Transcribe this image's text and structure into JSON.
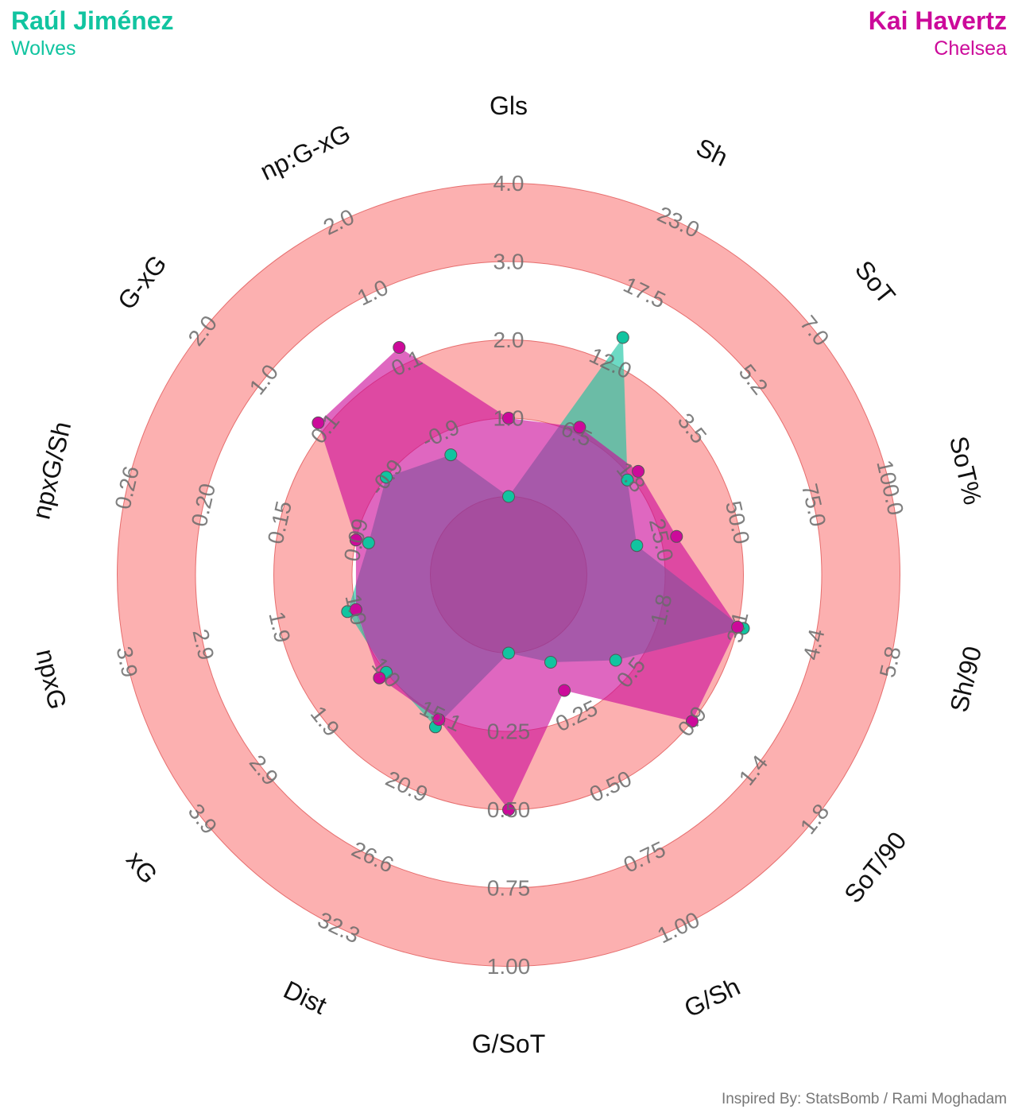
{
  "players": {
    "left": {
      "name": "Raúl Jiménez",
      "team": "Wolves",
      "color": "#11c4a0"
    },
    "right": {
      "name": "Kai Havertz",
      "team": "Chelsea",
      "color": "#cc0a9a"
    }
  },
  "credit": "Inspired By: StatsBomb / Rami Moghadam",
  "colors": {
    "ring": "#fcb0b0",
    "ring_edge": "#e05555"
  },
  "chart_data": {
    "type": "radar",
    "title": "",
    "metrics": [
      {
        "label": "Gls",
        "ticks": [
          "1.0",
          "2.0",
          "3.0",
          "4.0"
        ]
      },
      {
        "label": "Sh",
        "ticks": [
          "6.5",
          "12.0",
          "17.5",
          "23.0"
        ]
      },
      {
        "label": "SoT",
        "ticks": [
          "1.8",
          "3.5",
          "5.2",
          "7.0"
        ]
      },
      {
        "label": "SoT%",
        "ticks": [
          "25.0",
          "50.0",
          "75.0",
          "100.0"
        ]
      },
      {
        "label": "Sh/90",
        "ticks": [
          "1.8",
          "3.1",
          "4.4",
          "5.8"
        ]
      },
      {
        "label": "SoT/90",
        "ticks": [
          "0.5",
          "0.9",
          "1.4",
          "1.8"
        ]
      },
      {
        "label": "G/Sh",
        "ticks": [
          "0.25",
          "0.50",
          "0.75",
          "1.00"
        ]
      },
      {
        "label": "G/SoT",
        "ticks": [
          "0.25",
          "0.50",
          "0.75",
          "1.00"
        ]
      },
      {
        "label": "Dist",
        "ticks": [
          "15.1",
          "20.9",
          "26.6",
          "32.3"
        ]
      },
      {
        "label": "xG",
        "ticks": [
          "1.0",
          "1.9",
          "2.9",
          "3.9"
        ]
      },
      {
        "label": "npxG",
        "ticks": [
          "1.0",
          "1.9",
          "2.9",
          "3.9"
        ]
      },
      {
        "label": "npxG/Sh",
        "ticks": [
          "0.09",
          "0.15",
          "0.20",
          "0.26"
        ]
      },
      {
        "label": "G-xG",
        "ticks": [
          "-0.9",
          "0.1",
          "1.0",
          "2.0"
        ]
      },
      {
        "label": "np:G-xG",
        "ticks": [
          "-0.9",
          "0.1",
          "1.0",
          "2.0"
        ]
      }
    ],
    "series": [
      {
        "player": "left",
        "values": [
          0.0,
          14.0,
          1.7,
          17.0,
          3.2,
          0.4,
          0.06,
          0.0,
          16.0,
          1.0,
          1.1,
          0.08,
          -0.9,
          -1.2
        ]
      },
      {
        "player": "right",
        "values": [
          1.0,
          7.0,
          2.0,
          30.0,
          3.1,
          0.9,
          0.16,
          0.5,
          15.4,
          1.1,
          1.0,
          0.09,
          0.2,
          0.3
        ]
      }
    ]
  }
}
